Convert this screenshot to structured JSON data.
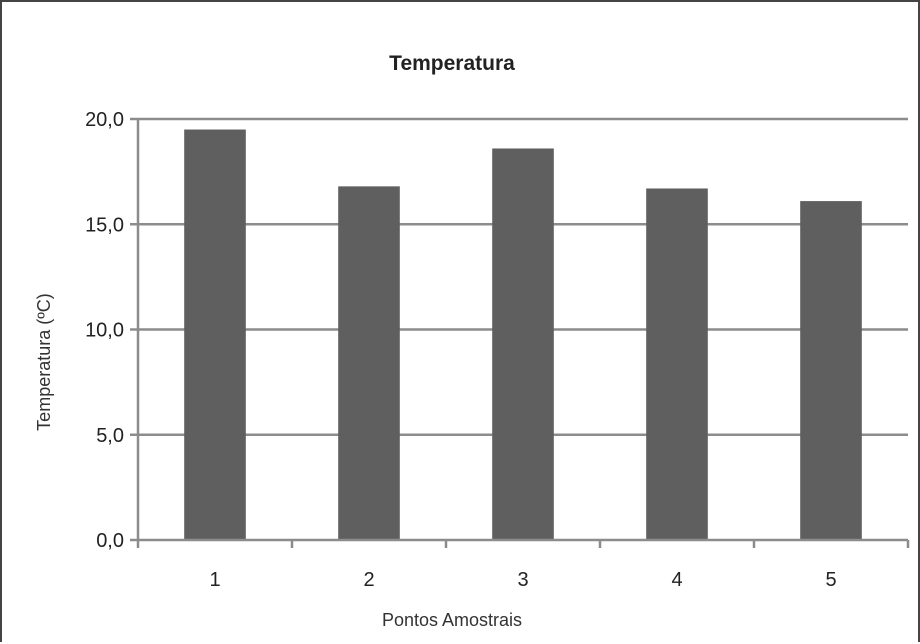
{
  "chart_data": {
    "type": "bar",
    "title": "Temperatura",
    "xlabel": "Pontos Amostrais",
    "ylabel": "Temperatura (ºC)",
    "categories": [
      "1",
      "2",
      "3",
      "4",
      "5"
    ],
    "values": [
      19.5,
      16.8,
      18.6,
      16.7,
      16.1
    ],
    "ylim": [
      0,
      20
    ],
    "yticks": [
      "0,0",
      "5,0",
      "10,0",
      "15,0",
      "20,0"
    ],
    "ytick_values": [
      0,
      5,
      10,
      15,
      20
    ],
    "grid": true,
    "legend": "none",
    "colors": {
      "bar": "#5f5f5f",
      "grid": "#8c8c8c",
      "axis": "#8c8c8c"
    }
  }
}
